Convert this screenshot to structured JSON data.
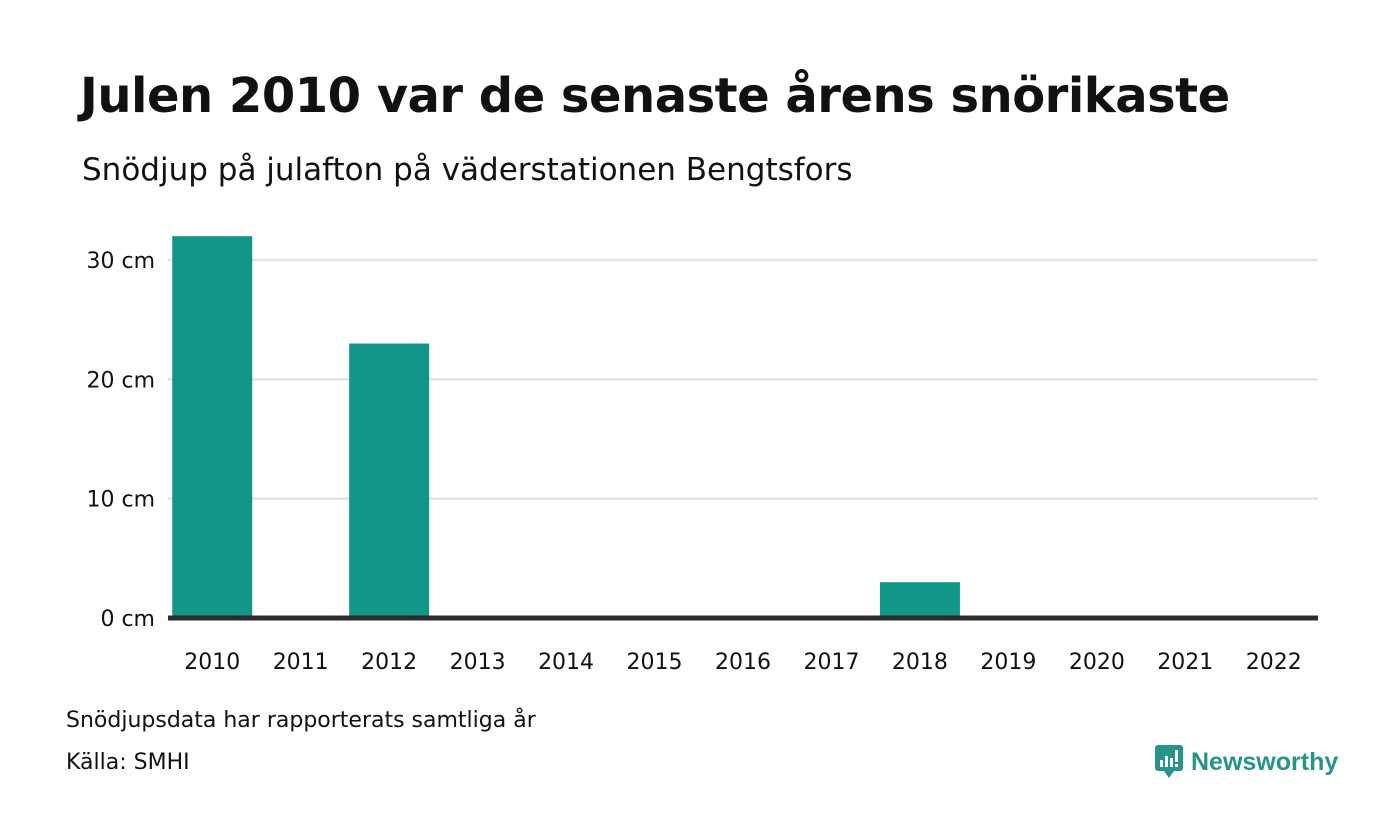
{
  "header": {
    "title": "Julen 2010 var de senaste årens snörikaste",
    "subtitle": "Snödjup på julafton på väderstationen Bengtsfors"
  },
  "footer": {
    "note": "Snödjupsdata har rapporterats samtliga år",
    "source": "Källa: SMHI",
    "logo_text": "Newsworthy",
    "logo_icon": "newsworthy-chart-icon"
  },
  "colors": {
    "bar": "#13968a",
    "grid": "#e3e3e3",
    "baseline": "#2b2b2b",
    "brand": "#27948a"
  },
  "chart_data": {
    "type": "bar",
    "categories": [
      "2010",
      "2011",
      "2012",
      "2013",
      "2014",
      "2015",
      "2016",
      "2017",
      "2018",
      "2019",
      "2020",
      "2021",
      "2022"
    ],
    "values": [
      32,
      0,
      23,
      0,
      0,
      0,
      0,
      0,
      3,
      0,
      0,
      0,
      0
    ],
    "title": "Julen 2010 var de senaste årens snörikaste",
    "subtitle": "Snödjup på julafton på väderstationen Bengtsfors",
    "xlabel": "",
    "ylabel": "",
    "ylim": [
      0,
      30
    ],
    "yticks": [
      0,
      10,
      20,
      30
    ],
    "ytick_labels": [
      "0 cm",
      "10 cm",
      "20 cm",
      "30 cm"
    ],
    "grid": true,
    "legend": "none"
  }
}
